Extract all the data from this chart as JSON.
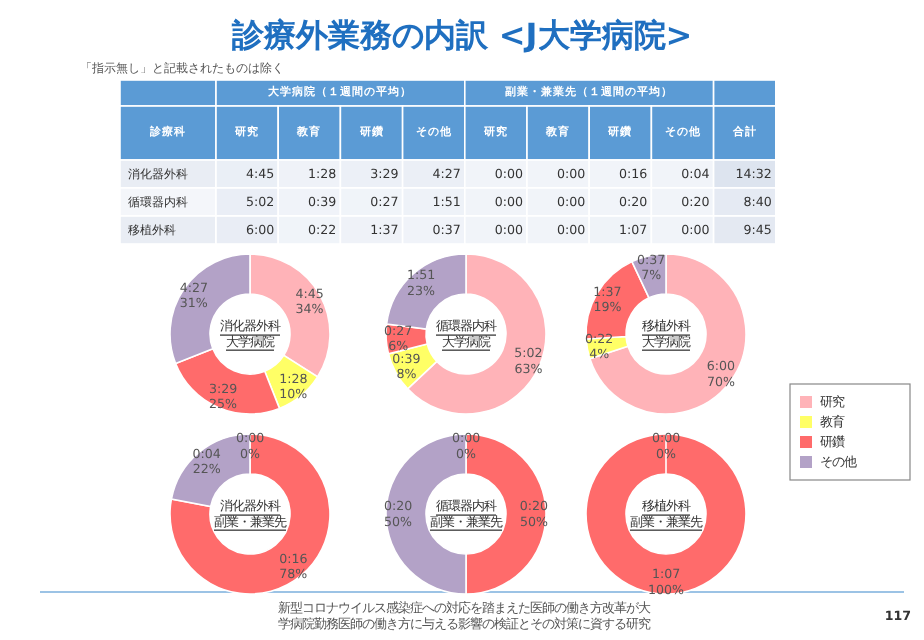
{
  "chart_data": [
    {
      "type": "heatmap",
      "title": "診療外業務の内訳 <J大学病院>",
      "subtitle": "「指示無し」と記載されたものは除く",
      "ylabel": "診療科",
      "categories": [
        "研究",
        "教育",
        "研鑽",
        "その他",
        "研究",
        "教育",
        "研鑽",
        "その他",
        "合計"
      ],
      "y_categories": [
        "消化器外科",
        "循環器内科",
        "移植外科"
      ],
      "cells": [
        [
          285,
          88,
          209,
          267,
          0,
          0,
          16,
          4,
          872
        ],
        [
          302,
          39,
          27,
          111,
          0,
          0,
          20,
          20,
          520
        ],
        [
          360,
          22,
          97,
          37,
          0,
          0,
          67,
          0,
          585
        ]
      ],
      "cell_labels": [
        [
          "4:45",
          "1:28",
          "3:29",
          "4:27",
          "0:00",
          "0:00",
          "0:16",
          "0:04",
          "14:32"
        ],
        [
          "5:02",
          "0:39",
          "0:27",
          "1:51",
          "0:00",
          "0:00",
          "0:20",
          "0:20",
          "8:40"
        ],
        [
          "6:00",
          "0:22",
          "1:37",
          "0:37",
          "0:00",
          "0:00",
          "1:07",
          "0:00",
          "9:45"
        ]
      ],
      "annotations": [
        "大学病院（１週間の平均）",
        "副業・兼業先（１週間の平均）",
        "新型コロナウイルス感染症への対応を踏まえた医師の働き方改革が大学病院勤務医師の働き方に与える影響の検証とその対策に資する研究",
        "117"
      ]
    },
    {
      "type": "donut",
      "title": "消化器外科大学病院",
      "values": [
        34,
        10,
        25,
        31
      ],
      "colors": [
        "#ffb3b8",
        "#ffff66",
        "#ff6b6b",
        "#b3a2c7"
      ],
      "value_labels": [
        "4:45\n34%",
        "1:28\n10%",
        "3:29\n25%",
        "4:27\n31%"
      ]
    },
    {
      "type": "donut",
      "title": "循環器内科大学病院",
      "values": [
        63,
        8,
        6,
        23
      ],
      "colors": [
        "#ffb3b8",
        "#ffff66",
        "#ff6b6b",
        "#b3a2c7"
      ],
      "value_labels": [
        "5:02\n63%",
        "0:39\n8%",
        "0:27\n6%",
        "1:51\n23%"
      ]
    },
    {
      "type": "donut",
      "title": "移植外科大学病院",
      "categories": [
        "研究",
        "教育",
        "研鑽",
        "その他"
      ],
      "values": [
        70,
        4,
        19,
        7
      ],
      "colors": [
        "#ffb3b8",
        "#ffff66",
        "#ff6b6b",
        "#b3a2c7"
      ],
      "value_labels": [
        "6:00\n70%",
        "0:22\n4%",
        "1:37\n19%",
        "0:37\n7%"
      ],
      "legend": "right"
    },
    {
      "type": "donut",
      "title": "消化器外科副業・兼業先",
      "values": [
        0,
        0,
        78,
        22
      ],
      "colors": [
        "#ffb3b8",
        "#ffff66",
        "#ff6b6b",
        "#b3a2c7"
      ],
      "value_labels": [
        "0:00\n0%",
        null,
        "0:16\n78%",
        "0:04\n22%"
      ]
    },
    {
      "type": "donut",
      "title": "循環器内科副業・兼業先",
      "values": [
        0,
        0,
        50,
        50
      ],
      "colors": [
        "#ffb3b8",
        "#ffff66",
        "#ff6b6b",
        "#b3a2c7"
      ],
      "value_labels": [
        "0:00\n0%",
        null,
        "0:20\n50%",
        "0:20\n50%"
      ]
    },
    {
      "type": "donut",
      "title": "移植外科副業・兼業先",
      "values": [
        0,
        0,
        100,
        0
      ],
      "colors": [
        "#ffb3b8",
        "#ffff66",
        "#ff6b6b",
        "#b3a2c7"
      ],
      "value_labels": [
        "0:00\n0%",
        null,
        "1:07\n100%",
        null
      ]
    }
  ]
}
